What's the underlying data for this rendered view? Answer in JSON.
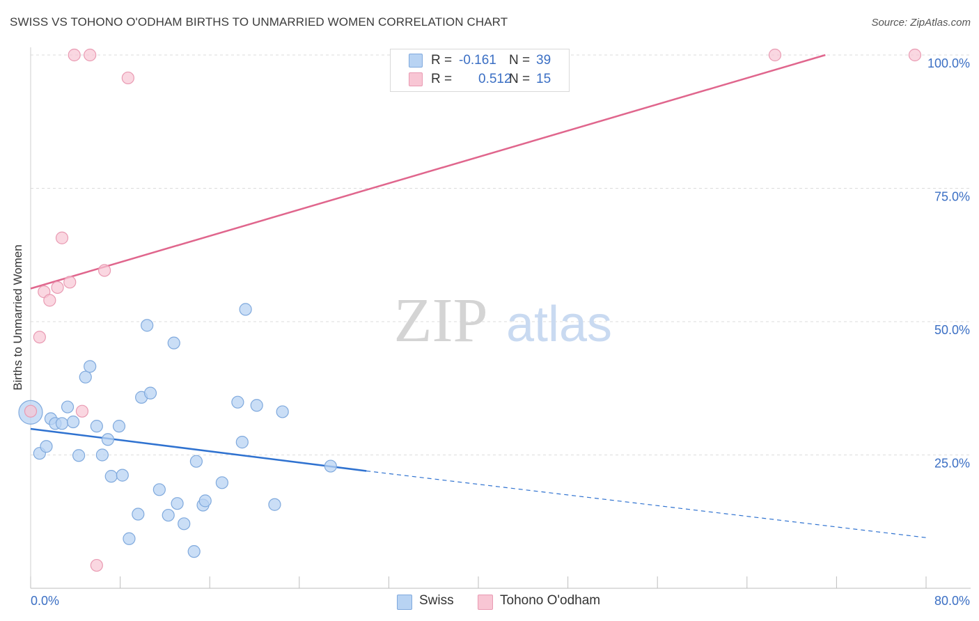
{
  "header": {
    "title": "SWISS VS TOHONO O'ODHAM BIRTHS TO UNMARRIED WOMEN CORRELATION CHART",
    "source": "Source: ZipAtlas.com"
  },
  "watermark": {
    "zip": "ZIP",
    "atlas": "atlas"
  },
  "legend": {
    "swiss": {
      "r_label": "R =",
      "r_value": "-0.161",
      "n_label": "N =",
      "n_value": "39"
    },
    "tohono": {
      "r_label": "R =",
      "r_value": "0.512",
      "n_label": "N =",
      "n_value": "15"
    }
  },
  "bottom_legend": {
    "swiss": "Swiss",
    "tohono": "Tohono O'odham"
  },
  "colors": {
    "swiss_fill": "#b8d3f3",
    "swiss_stroke": "#7fa9dd",
    "swiss_line": "#2f72d0",
    "tohono_fill": "#f8c6d4",
    "tohono_stroke": "#e99ab2",
    "tohono_line": "#e0668d",
    "tick_label": "#3b6fc4",
    "grid": "#dcdcdc"
  },
  "chart_data": {
    "type": "scatter",
    "title": "SWISS VS TOHONO O'ODHAM BIRTHS TO UNMARRIED WOMEN CORRELATION CHART",
    "xlabel": "",
    "ylabel": "Births to Unmarried Women",
    "xlim": [
      0,
      80
    ],
    "ylim": [
      0,
      100
    ],
    "x_tick_labels": [
      "0.0%",
      "80.0%"
    ],
    "y_ticks": [
      25,
      50,
      75,
      100
    ],
    "y_tick_labels": [
      "25.0%",
      "50.0%",
      "75.0%",
      "100.0%"
    ],
    "grid": true,
    "series": [
      {
        "name": "Swiss",
        "r": -0.161,
        "n": 39,
        "points": [
          {
            "x": 0.0,
            "y": 33.0,
            "big": true
          },
          {
            "x": 0.8,
            "y": 25.3
          },
          {
            "x": 1.4,
            "y": 26.6
          },
          {
            "x": 1.8,
            "y": 31.8
          },
          {
            "x": 2.2,
            "y": 30.9
          },
          {
            "x": 2.8,
            "y": 30.9
          },
          {
            "x": 3.3,
            "y": 34.0
          },
          {
            "x": 3.8,
            "y": 31.2
          },
          {
            "x": 4.3,
            "y": 24.9
          },
          {
            "x": 4.9,
            "y": 39.6
          },
          {
            "x": 5.3,
            "y": 41.6
          },
          {
            "x": 5.9,
            "y": 30.4
          },
          {
            "x": 6.4,
            "y": 25.0
          },
          {
            "x": 6.9,
            "y": 27.9
          },
          {
            "x": 7.2,
            "y": 21.0
          },
          {
            "x": 7.9,
            "y": 30.4
          },
          {
            "x": 8.2,
            "y": 21.2
          },
          {
            "x": 8.8,
            "y": 9.3
          },
          {
            "x": 9.6,
            "y": 13.9
          },
          {
            "x": 9.9,
            "y": 35.8
          },
          {
            "x": 10.4,
            "y": 49.3
          },
          {
            "x": 10.7,
            "y": 36.6
          },
          {
            "x": 11.5,
            "y": 18.5
          },
          {
            "x": 12.3,
            "y": 13.7
          },
          {
            "x": 12.8,
            "y": 46.0
          },
          {
            "x": 13.1,
            "y": 15.9
          },
          {
            "x": 13.7,
            "y": 12.1
          },
          {
            "x": 14.6,
            "y": 6.9
          },
          {
            "x": 14.8,
            "y": 23.8
          },
          {
            "x": 15.4,
            "y": 15.6
          },
          {
            "x": 15.6,
            "y": 16.4
          },
          {
            "x": 17.1,
            "y": 19.8
          },
          {
            "x": 18.5,
            "y": 34.9
          },
          {
            "x": 18.9,
            "y": 27.4
          },
          {
            "x": 19.2,
            "y": 52.3
          },
          {
            "x": 20.2,
            "y": 34.3
          },
          {
            "x": 21.8,
            "y": 15.7
          },
          {
            "x": 22.5,
            "y": 33.1
          },
          {
            "x": 26.8,
            "y": 22.9
          }
        ],
        "trend": {
          "x0": 0,
          "y0": 29.9,
          "x1": 30,
          "y1": 22.0,
          "dashed_to_x": 80,
          "dashed_to_y": 9.5
        }
      },
      {
        "name": "Tohono O'odham",
        "r": 0.512,
        "n": 15,
        "points": [
          {
            "x": 0.0,
            "y": 33.2
          },
          {
            "x": 0.8,
            "y": 47.1
          },
          {
            "x": 1.2,
            "y": 55.6
          },
          {
            "x": 1.7,
            "y": 54.0
          },
          {
            "x": 2.4,
            "y": 56.4
          },
          {
            "x": 2.8,
            "y": 65.7
          },
          {
            "x": 3.5,
            "y": 57.4
          },
          {
            "x": 3.9,
            "y": 100.0
          },
          {
            "x": 4.6,
            "y": 33.2
          },
          {
            "x": 5.3,
            "y": 100.0
          },
          {
            "x": 5.9,
            "y": 4.3
          },
          {
            "x": 6.6,
            "y": 59.6
          },
          {
            "x": 8.7,
            "y": 95.7
          },
          {
            "x": 66.5,
            "y": 100.0
          },
          {
            "x": 79.0,
            "y": 100.0
          }
        ],
        "trend": {
          "x0": 0,
          "y0": 56.2,
          "x1": 71,
          "y1": 100.0
        }
      }
    ]
  }
}
